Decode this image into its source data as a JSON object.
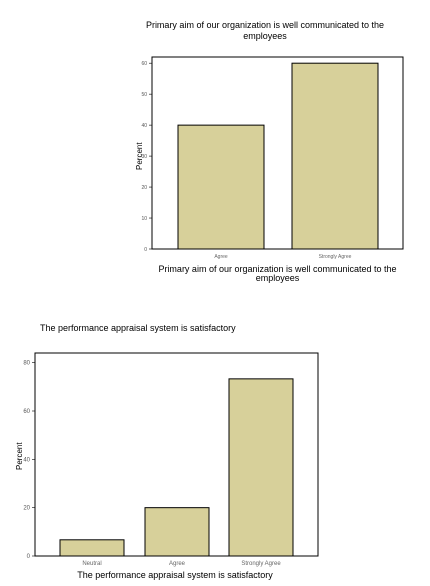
{
  "chart_data": [
    {
      "type": "bar",
      "title": "Primary aim of our organization is well communicated to the employees",
      "xlabel": "Primary aim of our organization is well communicated to the employees",
      "ylabel": "Percent",
      "categories": [
        "Agree",
        "Strongly Agree"
      ],
      "values": [
        40,
        60
      ],
      "ylim": [
        0,
        62
      ],
      "yticks": [
        0,
        10,
        20,
        30,
        40,
        50,
        60
      ],
      "bar_color": "#d7d09a",
      "grid": false
    },
    {
      "type": "bar",
      "title": "The performance appraisal system is satisfactory",
      "xlabel": "The performance appraisal system is satisfactory",
      "ylabel": "Percent",
      "categories": [
        "Neutral",
        "Agree",
        "Strongly Agree"
      ],
      "values": [
        6.7,
        20,
        73.3
      ],
      "ylim": [
        0,
        84
      ],
      "yticks": [
        0,
        20,
        40,
        60,
        80
      ],
      "bar_color": "#d7d09a",
      "grid": false
    }
  ]
}
